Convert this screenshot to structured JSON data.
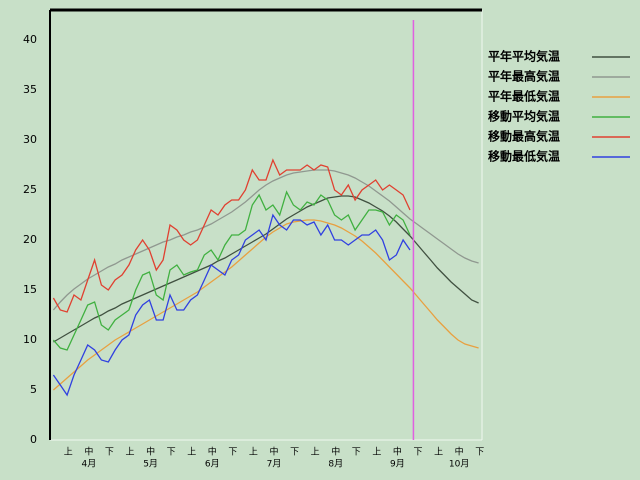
{
  "chart_data": {
    "type": "line",
    "categories": [
      null,
      "上",
      null,
      null,
      "中",
      null,
      null,
      "下",
      null,
      null,
      "上",
      null,
      null,
      "中",
      null,
      null,
      "下",
      null,
      null,
      "上",
      null,
      null,
      "中",
      null,
      null,
      "下",
      null,
      null,
      "上",
      null,
      null,
      "中",
      null,
      null,
      "下",
      null,
      null,
      "上",
      null,
      null,
      "中",
      null,
      null,
      "下",
      null,
      null,
      "上",
      null,
      null,
      "中",
      null,
      null,
      "下",
      null,
      null,
      "上",
      null,
      null,
      "中",
      null,
      null,
      "下",
      null
    ],
    "months": [
      "4月",
      "5月",
      "6月",
      "7月",
      "8月",
      "9月",
      "10月"
    ],
    "ylim": [
      0,
      43
    ],
    "yticks": [
      0,
      5,
      10,
      15,
      20,
      25,
      30,
      35,
      40
    ],
    "series": [
      {
        "name": "平年平均気温",
        "color": "#405040",
        "values": [
          9.8,
          10.2,
          10.6,
          11.0,
          11.4,
          11.8,
          12.2,
          12.5,
          12.9,
          13.2,
          13.6,
          13.9,
          14.2,
          14.5,
          14.8,
          15.1,
          15.4,
          15.7,
          16.0,
          16.3,
          16.6,
          16.9,
          17.2,
          17.5,
          17.9,
          18.2,
          18.6,
          19.0,
          19.4,
          19.8,
          20.2,
          20.6,
          21.1,
          21.6,
          22.1,
          22.5,
          22.9,
          23.3,
          23.6,
          23.9,
          24.2,
          24.3,
          24.4,
          24.4,
          24.3,
          24.0,
          23.7,
          23.3,
          22.9,
          22.4,
          21.8,
          21.1,
          20.4,
          19.6,
          18.8,
          18.0,
          17.2,
          16.5,
          15.8,
          15.2,
          14.6,
          14.0,
          13.7
        ]
      },
      {
        "name": "平年最高気温",
        "color": "#909890",
        "values": [
          13.0,
          13.8,
          14.5,
          15.1,
          15.6,
          16.1,
          16.5,
          16.9,
          17.3,
          17.6,
          18.0,
          18.3,
          18.6,
          18.9,
          19.2,
          19.5,
          19.8,
          20.0,
          20.3,
          20.5,
          20.8,
          21.0,
          21.3,
          21.6,
          22.0,
          22.4,
          22.8,
          23.3,
          23.8,
          24.4,
          25.0,
          25.5,
          25.9,
          26.2,
          26.5,
          26.7,
          26.8,
          26.9,
          27.0,
          27.0,
          27.0,
          26.9,
          26.7,
          26.5,
          26.2,
          25.8,
          25.4,
          24.9,
          24.4,
          23.9,
          23.3,
          22.7,
          22.1,
          21.6,
          21.1,
          20.6,
          20.1,
          19.6,
          19.1,
          18.6,
          18.2,
          17.9,
          17.7
        ]
      },
      {
        "name": "平年最低気温",
        "color": "#e8a040",
        "values": [
          5.0,
          5.6,
          6.2,
          6.8,
          7.4,
          8.0,
          8.5,
          9.0,
          9.5,
          10.0,
          10.4,
          10.8,
          11.2,
          11.6,
          12.0,
          12.4,
          12.8,
          13.2,
          13.6,
          14.0,
          14.4,
          14.8,
          15.3,
          15.8,
          16.3,
          16.8,
          17.3,
          17.9,
          18.5,
          19.1,
          19.7,
          20.3,
          20.8,
          21.2,
          21.6,
          21.8,
          21.9,
          22.0,
          22.0,
          21.9,
          21.7,
          21.5,
          21.2,
          20.8,
          20.4,
          19.9,
          19.3,
          18.7,
          18.0,
          17.3,
          16.6,
          15.9,
          15.2,
          14.4,
          13.6,
          12.8,
          12.0,
          11.3,
          10.6,
          10.0,
          9.6,
          9.4,
          9.2
        ]
      },
      {
        "name": "移動平均気温",
        "color": "#40b040",
        "values": [
          10.0,
          9.2,
          9.0,
          10.5,
          12.0,
          13.5,
          13.8,
          11.5,
          11.0,
          12.0,
          12.5,
          13.0,
          15.0,
          16.5,
          16.8,
          14.5,
          14.0,
          17.0,
          17.5,
          16.5,
          16.8,
          17.0,
          18.5,
          19.0,
          18.0,
          19.5,
          20.5,
          20.5,
          21.0,
          23.5,
          24.5,
          23.0,
          23.5,
          22.5,
          24.8,
          23.5,
          23.0,
          23.8,
          23.5,
          24.5,
          24.0,
          22.5,
          22.0,
          22.5,
          21.0,
          22.0,
          23.0,
          23.0,
          22.8,
          21.5,
          22.5,
          22.0,
          20.5,
          null,
          null,
          null,
          null,
          null,
          null,
          null,
          null,
          null,
          null
        ]
      },
      {
        "name": "移動最高気温",
        "color": "#e04030",
        "values": [
          14.2,
          13.0,
          12.8,
          14.5,
          14.0,
          16.0,
          18.0,
          15.5,
          15.0,
          16.0,
          16.5,
          17.5,
          19.0,
          20.0,
          19.0,
          17.0,
          18.0,
          21.5,
          21.0,
          20.0,
          19.5,
          20.0,
          21.5,
          23.0,
          22.5,
          23.5,
          24.0,
          24.0,
          25.0,
          27.0,
          26.0,
          26.0,
          28.0,
          26.5,
          27.0,
          27.0,
          27.0,
          27.5,
          27.0,
          27.5,
          27.3,
          25.0,
          24.5,
          25.5,
          24.0,
          25.0,
          25.5,
          26.0,
          25.0,
          25.5,
          25.0,
          24.5,
          23.0,
          null,
          null,
          null,
          null,
          null,
          null,
          null,
          null,
          null,
          null
        ]
      },
      {
        "name": "移動最低気温",
        "color": "#3040e0",
        "values": [
          6.5,
          5.5,
          4.5,
          6.5,
          8.0,
          9.5,
          9.0,
          8.0,
          7.8,
          9.0,
          10.0,
          10.5,
          12.5,
          13.5,
          14.0,
          12.0,
          12.0,
          14.5,
          13.0,
          13.0,
          14.0,
          14.5,
          16.0,
          17.5,
          17.0,
          16.5,
          18.0,
          18.5,
          20.0,
          20.5,
          21.0,
          20.0,
          22.5,
          21.5,
          21.0,
          22.0,
          22.0,
          21.5,
          21.8,
          20.5,
          21.5,
          20.0,
          20.0,
          19.5,
          20.0,
          20.5,
          20.5,
          21.0,
          20.0,
          18.0,
          18.5,
          20.0,
          19.0,
          null,
          null,
          null,
          null,
          null,
          null,
          null,
          null,
          null,
          null
        ]
      }
    ]
  }
}
